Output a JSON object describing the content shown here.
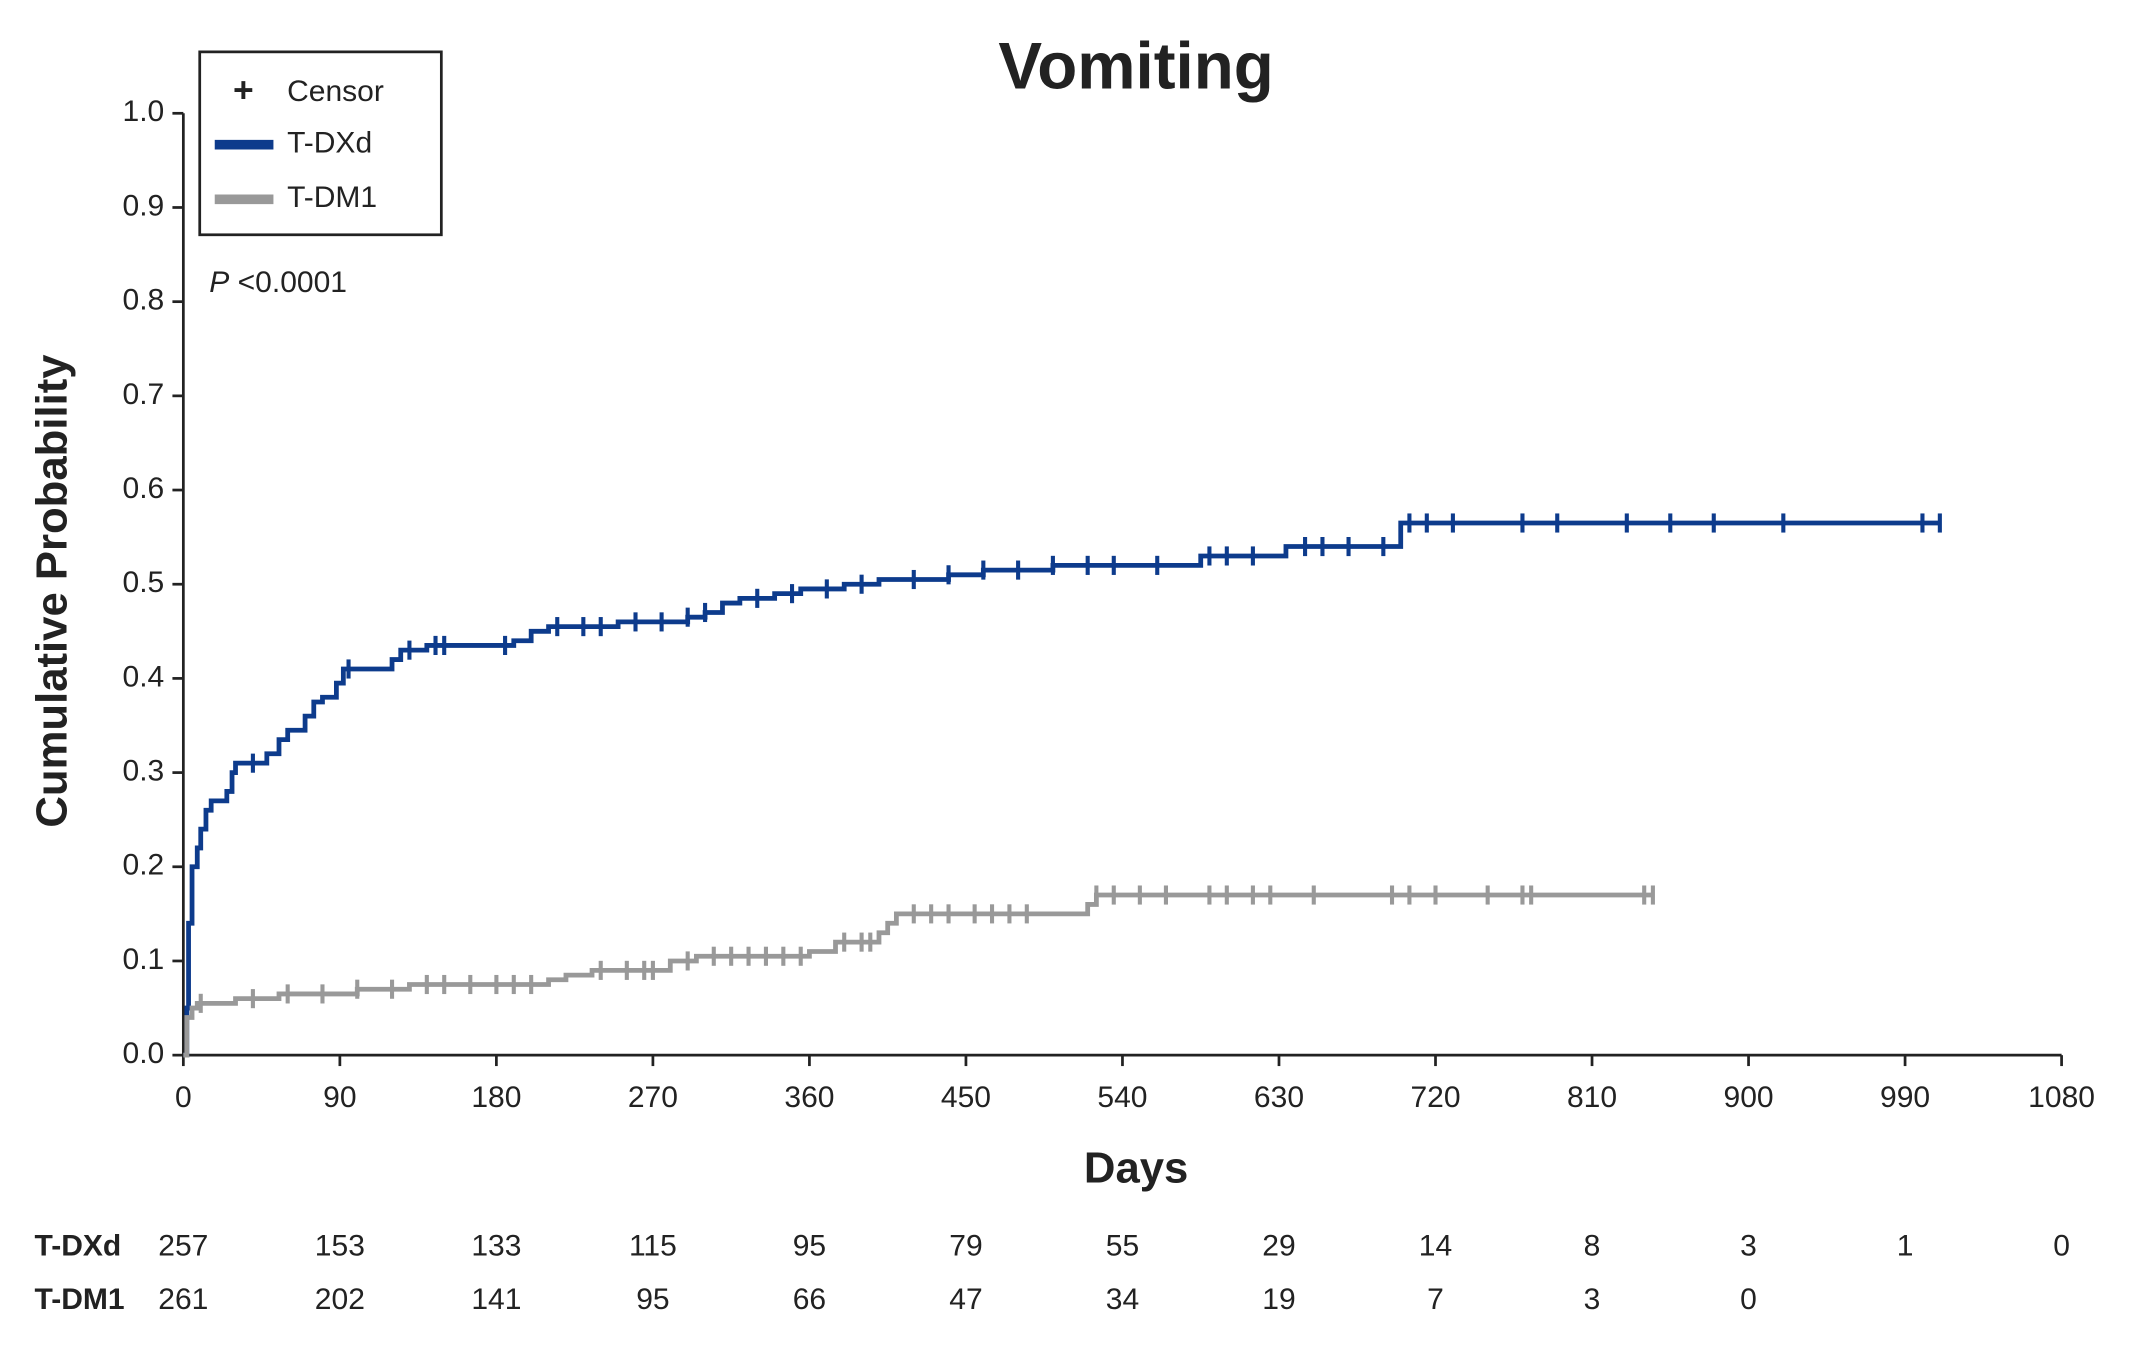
{
  "chart_data": {
    "type": "step",
    "title": "Vomiting",
    "x_label": "Days",
    "y_label": "Cumulative Probability",
    "annotation": "P <0.0001",
    "censor_label": "Censor",
    "xlim": [
      0,
      1080
    ],
    "xticks": [
      0,
      90,
      180,
      270,
      360,
      450,
      540,
      630,
      720,
      810,
      900,
      990,
      1080
    ],
    "ylim": [
      0,
      1
    ],
    "yticks": [
      {
        "value": 0,
        "label": "0.0"
      },
      0.1,
      0.2,
      0.3,
      0.4,
      0.5,
      0.6,
      0.7,
      0.8,
      0.9,
      {
        "value": 1,
        "label": "1.0"
      }
    ],
    "series": [
      {
        "name": "T-DXd",
        "color": "#0d3b8c",
        "x": [
          0,
          2,
          3,
          5,
          8,
          10,
          13,
          16,
          25,
          28,
          30,
          48,
          55,
          60,
          70,
          75,
          80,
          88,
          92,
          120,
          125,
          140,
          190,
          200,
          210,
          250,
          290,
          300,
          310,
          320,
          340,
          355,
          380,
          400,
          440,
          460,
          500,
          585,
          634,
          700,
          1010
        ],
        "y": [
          0,
          0.05,
          0.14,
          0.2,
          0.22,
          0.24,
          0.26,
          0.27,
          0.28,
          0.3,
          0.31,
          0.32,
          0.335,
          0.345,
          0.36,
          0.375,
          0.38,
          0.395,
          0.41,
          0.42,
          0.43,
          0.435,
          0.44,
          0.45,
          0.455,
          0.46,
          0.465,
          0.47,
          0.48,
          0.485,
          0.49,
          0.495,
          0.5,
          0.505,
          0.51,
          0.515,
          0.52,
          0.53,
          0.54,
          0.565,
          0.565
        ],
        "censor_x": [
          40,
          95,
          130,
          145,
          150,
          185,
          215,
          230,
          240,
          260,
          275,
          290,
          300,
          330,
          350,
          370,
          390,
          420,
          440,
          460,
          480,
          500,
          520,
          535,
          560,
          590,
          600,
          615,
          645,
          655,
          670,
          690,
          705,
          715,
          730,
          770,
          790,
          830,
          855,
          880,
          920,
          1000,
          1010
        ],
        "at_risk": [
          257,
          153,
          133,
          115,
          95,
          79,
          55,
          29,
          14,
          8,
          3,
          1,
          0
        ]
      },
      {
        "name": "T-DM1",
        "color": "#999999",
        "x": [
          0,
          2,
          5,
          8,
          30,
          55,
          100,
          130,
          210,
          220,
          235,
          280,
          295,
          360,
          375,
          400,
          405,
          410,
          520,
          525,
          845
        ],
        "y": [
          0,
          0.04,
          0.05,
          0.055,
          0.06,
          0.065,
          0.07,
          0.075,
          0.08,
          0.085,
          0.09,
          0.1,
          0.105,
          0.11,
          0.12,
          0.13,
          0.14,
          0.15,
          0.16,
          0.17,
          0.17
        ],
        "censor_x": [
          10,
          40,
          60,
          80,
          100,
          120,
          140,
          150,
          165,
          180,
          190,
          200,
          240,
          255,
          265,
          270,
          290,
          305,
          315,
          325,
          335,
          345,
          355,
          380,
          390,
          395,
          420,
          430,
          440,
          455,
          465,
          475,
          485,
          525,
          535,
          550,
          565,
          590,
          600,
          615,
          625,
          650,
          695,
          705,
          720,
          750,
          770,
          775,
          840,
          845
        ],
        "at_risk": [
          261,
          202,
          141,
          95,
          66,
          47,
          34,
          19,
          7,
          3,
          0
        ]
      }
    ]
  }
}
